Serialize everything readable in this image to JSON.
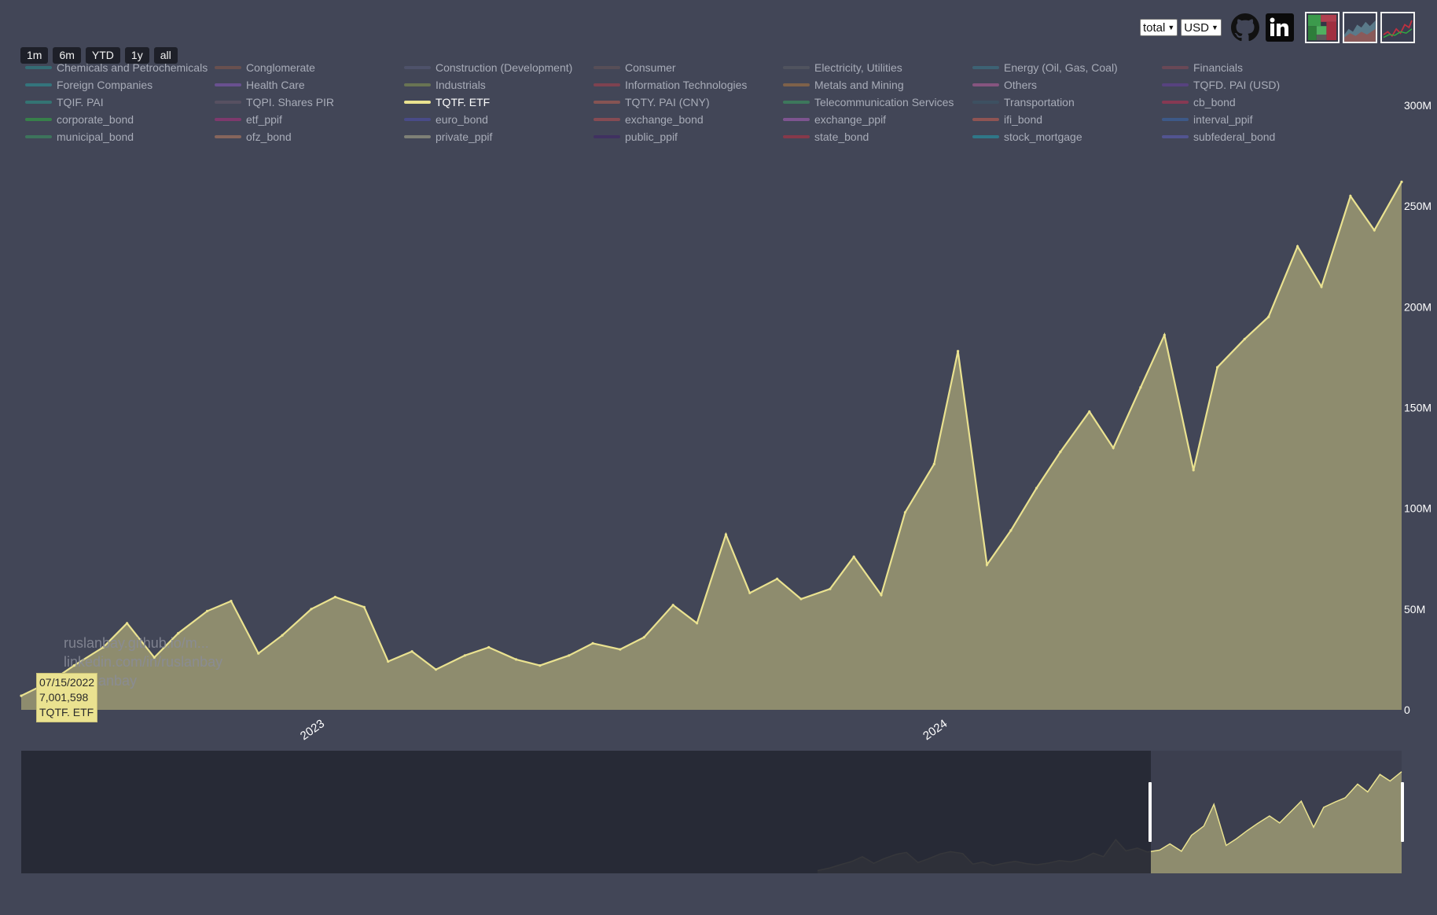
{
  "controls": {
    "aggregation_select": "total",
    "currency_select": "USD",
    "github_icon": "github-icon",
    "linkedin_icon": "linkedin-icon",
    "thumbnails": [
      "treemap-thumbnail",
      "area-chart-thumbnail",
      "line-chart-thumbnail"
    ]
  },
  "range_buttons": [
    "1m",
    "6m",
    "YTD",
    "1y",
    "all"
  ],
  "legend": [
    {
      "label": "Chemicals and Petrochemicals",
      "color": "#2a8c8c"
    },
    {
      "label": "Conglomerate",
      "color": "#8a5a48"
    },
    {
      "label": "Construction (Development)",
      "color": "#5a5c7a"
    },
    {
      "label": "Consumer",
      "color": "#6a5558"
    },
    {
      "label": "Electricity, Utilities",
      "color": "#5c5e64"
    },
    {
      "label": "Energy (Oil, Gas, Coal)",
      "color": "#3a7a8c"
    },
    {
      "label": "Financials",
      "color": "#8a4a55"
    },
    {
      "label": "Foreign Companies",
      "color": "#2a9a9a"
    },
    {
      "label": "Health Care",
      "color": "#8a5ac0"
    },
    {
      "label": "Industrials",
      "color": "#8a9a50"
    },
    {
      "label": "Information Technologies",
      "color": "#b0404a"
    },
    {
      "label": "Metals and Mining",
      "color": "#b07840"
    },
    {
      "label": "Others",
      "color": "#c060a0"
    },
    {
      "label": "TQFD. PAI (USD)",
      "color": "#6a40a0"
    },
    {
      "label": "TQIF. PAI",
      "color": "#2a9a8a"
    },
    {
      "label": "TQPI. Shares PIR",
      "color": "#6a5a6a"
    },
    {
      "label": "TQTF. ETF",
      "color": "#eae290"
    },
    {
      "label": "TQTY. PAI (CNY)",
      "color": "#c06050"
    },
    {
      "label": "Telecommunication Services",
      "color": "#3aa060"
    },
    {
      "label": "Transportation",
      "color": "#3a5a6a"
    },
    {
      "label": "cb_bond",
      "color": "#c03050"
    },
    {
      "label": "corporate_bond",
      "color": "#30b040"
    },
    {
      "label": "etf_ppif",
      "color": "#b03080"
    },
    {
      "label": "euro_bond",
      "color": "#5050b0"
    },
    {
      "label": "exchange_bond",
      "color": "#c05050"
    },
    {
      "label": "exchange_ppif",
      "color": "#b060c0"
    },
    {
      "label": "ifi_bond",
      "color": "#d06050"
    },
    {
      "label": "interval_ppif",
      "color": "#3a6ab0"
    },
    {
      "label": "municipal_bond",
      "color": "#3a9a60"
    },
    {
      "label": "ofz_bond",
      "color": "#c08060"
    },
    {
      "label": "private_ppif",
      "color": "#b0b090"
    },
    {
      "label": "public_ppif",
      "color": "#40206a"
    },
    {
      "label": "state_bond",
      "color": "#c03040"
    },
    {
      "label": "stock_mortgage",
      "color": "#20a0b0"
    },
    {
      "label": "subfederal_bond",
      "color": "#6060c0"
    }
  ],
  "active_series": "TQTF. ETF",
  "watermark": [
    "ruslanbay.github.io/m...",
    "linkedin.com/in/ruslanbay",
    "...ruslanbay"
  ],
  "tooltip": {
    "date": "07/15/2022",
    "value": "7,001,598",
    "series": "TQTF. ETF"
  },
  "colors": {
    "background": "#424657",
    "series_line": "#eae290",
    "series_fill": "#8e8c6e",
    "navigator_mask": "#262834"
  },
  "chart_data": {
    "type": "area",
    "series": [
      {
        "name": "TQTF. ETF",
        "x": [
          "2022-07-15",
          "2022-08-01",
          "2022-08-15",
          "2022-09-01",
          "2022-09-15",
          "2022-10-01",
          "2022-10-15",
          "2022-11-01",
          "2022-11-15",
          "2022-12-01",
          "2022-12-15",
          "2023-01-01",
          "2023-01-15",
          "2023-02-01",
          "2023-02-15",
          "2023-03-01",
          "2023-03-15",
          "2023-04-01",
          "2023-04-15",
          "2023-05-01",
          "2023-05-15",
          "2023-06-01",
          "2023-06-15",
          "2023-07-01",
          "2023-07-15",
          "2023-08-01",
          "2023-08-15",
          "2023-09-01",
          "2023-09-15",
          "2023-10-01",
          "2023-10-15",
          "2023-11-01",
          "2023-11-15",
          "2023-12-01",
          "2023-12-15",
          "2024-01-01",
          "2024-01-15",
          "2024-02-01",
          "2024-02-15",
          "2024-03-01",
          "2024-03-15",
          "2024-04-01",
          "2024-04-15",
          "2024-05-01",
          "2024-05-15",
          "2024-06-01",
          "2024-06-15",
          "2024-07-01",
          "2024-07-15",
          "2024-08-01",
          "2024-08-15",
          "2024-09-01",
          "2024-09-15",
          "2024-10-01"
        ],
        "values": [
          7000000,
          14000000,
          22000000,
          31000000,
          43000000,
          26000000,
          38000000,
          49000000,
          54000000,
          28000000,
          37000000,
          50000000,
          56000000,
          51000000,
          24000000,
          29000000,
          20000000,
          27000000,
          31000000,
          25000000,
          22000000,
          27000000,
          33000000,
          30000000,
          36000000,
          52000000,
          43000000,
          87000000,
          58000000,
          65000000,
          55000000,
          60000000,
          76000000,
          57000000,
          98000000,
          122000000,
          178000000,
          72000000,
          89000000,
          110000000,
          128000000,
          148000000,
          130000000,
          160000000,
          186000000,
          119000000,
          170000000,
          184000000,
          195000000,
          230000000,
          210000000,
          255000000,
          238000000,
          262000000
        ]
      }
    ],
    "x_ticks": [
      "2023",
      "2024"
    ],
    "y_ticks": [
      "0",
      "50M",
      "100M",
      "150M",
      "200M",
      "250M",
      "300M"
    ],
    "ylim": [
      0,
      300000000
    ],
    "xlim": [
      "2022-07-15",
      "2024-10-01"
    ],
    "grid": false,
    "legend_position": "top",
    "navigator_selected_range": [
      "2022-07-15",
      "2024-10-01"
    ]
  }
}
